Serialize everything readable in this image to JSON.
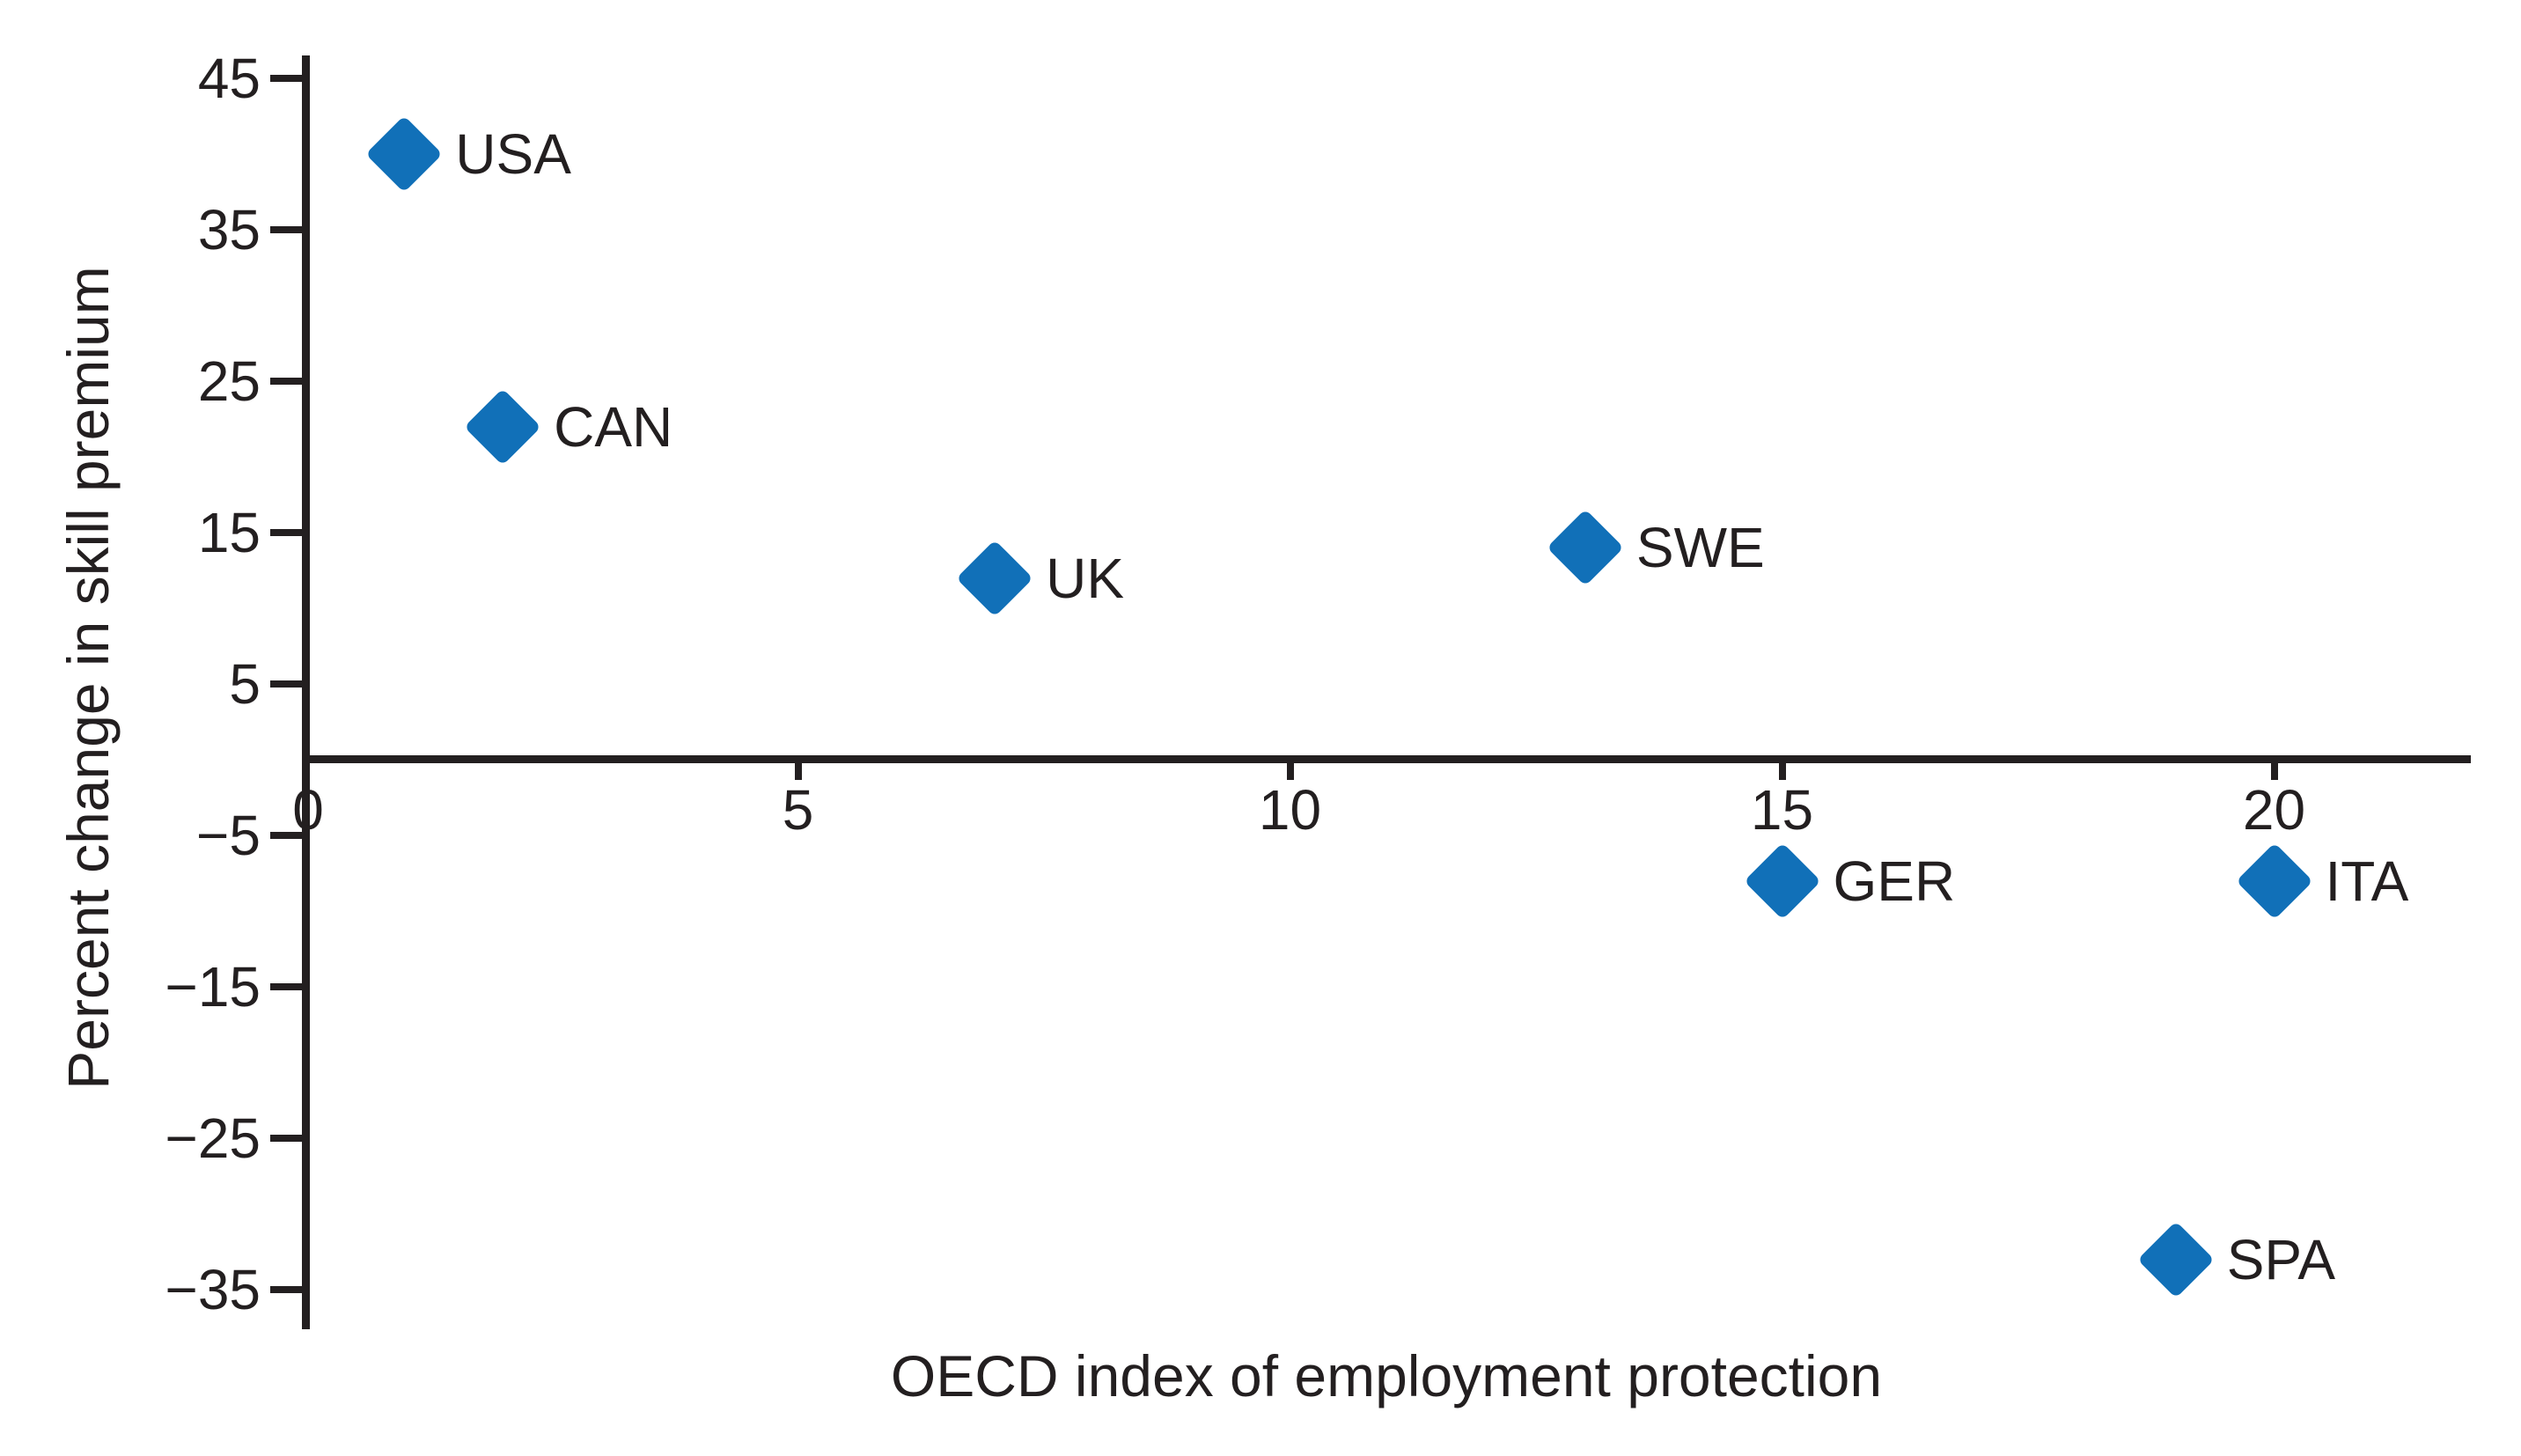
{
  "chart_data": {
    "type": "scatter",
    "title": "",
    "xlabel": "OECD index of employment protection",
    "ylabel": "Percent change in skill premium",
    "x_ticks": [
      0,
      5,
      10,
      15,
      20
    ],
    "y_ticks": [
      45,
      35,
      25,
      15,
      5,
      -5,
      -15,
      -25,
      -35
    ],
    "xlim": [
      0,
      22
    ],
    "ylim": [
      -37.5,
      46.5
    ],
    "grid": false,
    "legend": false,
    "marker": "diamond",
    "points": [
      {
        "label": "USA",
        "x": 1,
        "y": 40
      },
      {
        "label": "CAN",
        "x": 2,
        "y": 22
      },
      {
        "label": "UK",
        "x": 7,
        "y": 12
      },
      {
        "label": "SWE",
        "x": 13,
        "y": 14
      },
      {
        "label": "GER",
        "x": 15,
        "y": -8
      },
      {
        "label": "ITA",
        "x": 20,
        "y": -8
      },
      {
        "label": "SPA",
        "x": 19,
        "y": -33
      }
    ]
  },
  "colors": {
    "marker_blue": "#1170b8",
    "ink": "#231f20",
    "background": "#ffffff"
  }
}
